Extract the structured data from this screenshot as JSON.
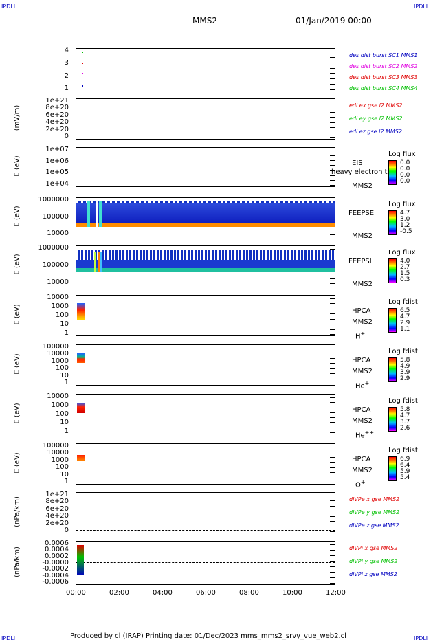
{
  "corners": {
    "tl": "IPDLI",
    "tr": "IPDLI",
    "bl": "IPDLI",
    "br": "IPDLI"
  },
  "header": {
    "mission": "MMS2",
    "date": "01/Jan/2019 00:00"
  },
  "panels": {
    "p1": {
      "yticks": [
        "4",
        "3",
        "2",
        "1"
      ],
      "legend": [
        "des dist burst SC1 MMS1",
        "des dist burst SC2 MMS2",
        "des dist burst SC3 MMS3",
        "des dist burst SC4 MMS4"
      ],
      "legend_colors": [
        "#0000c0",
        "#e000e0",
        "#e00000",
        "#00c000"
      ]
    },
    "p2": {
      "ylabel": "(mV/m)",
      "yticks": [
        "1e+21",
        "8e+20",
        "6e+20",
        "4e+20",
        "2e+20",
        "0"
      ],
      "legend": [
        "edi ex gse l2 MMS2",
        "edi ey gse l2 MMS2",
        "edi ez gse l2 MMS2"
      ],
      "legend_colors": [
        "#e00000",
        "#00c000",
        "#0000c0"
      ]
    },
    "p3": {
      "ylabel": "E (eV)",
      "yticks": [
        "1e+07",
        "1e+06",
        "1e+05",
        "1e+04"
      ],
      "inst": "EIS",
      "sc": "MMS2",
      "overlay": "heavy electron to",
      "cb_title": "Log flux",
      "cb_vals": [
        "0.0",
        "0.0",
        "0.0",
        "0.0"
      ]
    },
    "p4": {
      "ylabel": "E (eV)",
      "yticks": [
        "1000000",
        "100000",
        "10000"
      ],
      "inst": "FEEPSE",
      "sc": "MMS2",
      "cb_title": "Log flux",
      "cb_vals": [
        "4.7",
        "3.0",
        "1.2",
        "-0.5"
      ]
    },
    "p5": {
      "ylabel": "E (eV)",
      "yticks": [
        "1000000",
        "100000",
        "10000"
      ],
      "inst": "FEEPSI",
      "sc": "MMS2",
      "cb_title": "Log flux",
      "cb_vals": [
        "4.0",
        "2.7",
        "1.5",
        "0.3"
      ]
    },
    "p6": {
      "ylabel": "E (eV)",
      "yticks": [
        "10000",
        "1000",
        "100",
        "10",
        "1"
      ],
      "inst": "HPCA",
      "sc": "MMS2",
      "species": "H",
      "species_sup": "+",
      "cb_title": "Log fdist",
      "cb_vals": [
        "6.5",
        "4.7",
        "2.9",
        "1.1"
      ]
    },
    "p7": {
      "ylabel": "E (eV)",
      "yticks": [
        "100000",
        "10000",
        "1000",
        "100",
        "10",
        "1"
      ],
      "inst": "HPCA",
      "sc": "MMS2",
      "species": "He",
      "species_sup": "+",
      "cb_title": "Log fdist",
      "cb_vals": [
        "5.8",
        "4.9",
        "3.9",
        "2.9"
      ]
    },
    "p8": {
      "ylabel": "E (eV)",
      "yticks": [
        "10000",
        "1000",
        "100",
        "10",
        "1"
      ],
      "inst": "HPCA",
      "sc": "MMS2",
      "species": "He",
      "species_sup": "++",
      "cb_title": "Log fdist",
      "cb_vals": [
        "5.8",
        "4.7",
        "3.7",
        "2.6"
      ]
    },
    "p9": {
      "ylabel": "E (eV)",
      "yticks": [
        "100000",
        "10000",
        "1000",
        "100",
        "10",
        "1"
      ],
      "inst": "HPCA",
      "sc": "MMS2",
      "species": "O",
      "species_sup": "+",
      "cb_title": "Log fdist",
      "cb_vals": [
        "6.9",
        "6.4",
        "5.9",
        "5.4"
      ]
    },
    "p10": {
      "ylabel": "(nPa/km)",
      "yticks": [
        "1e+21",
        "8e+20",
        "6e+20",
        "4e+20",
        "2e+20",
        "0"
      ],
      "legend": [
        "dIVPe x gse MMS2",
        "dIVPe y gse MMS2",
        "dIVPe z gse MMS2"
      ],
      "legend_colors": [
        "#e00000",
        "#00c000",
        "#0000c0"
      ]
    },
    "p11": {
      "ylabel": "(nPa/km)",
      "yticks": [
        "0.0006",
        "0.0004",
        "0.0002",
        "-0.0000",
        "-0.0002",
        "-0.0004",
        "-0.0006"
      ],
      "legend": [
        "dIVPi x gse MMS2",
        "dIVPi y gse MMS2",
        "dIVPi z gse MMS2"
      ],
      "legend_colors": [
        "#e00000",
        "#00c000",
        "#0000c0"
      ]
    }
  },
  "xaxis": {
    "ticks": [
      "00:00",
      "02:00",
      "04:00",
      "06:00",
      "08:00",
      "10:00",
      "12:00"
    ]
  },
  "footer": {
    "text": "Produced by cl (IRAP)   Printing date: 01/Dec/2023   mms_mms2_srvy_vue_web2.cl"
  },
  "chart_data": {
    "type": "heatmap",
    "title": "MMS2",
    "x": {
      "start": "00:00",
      "end": "12:00",
      "ticks": [
        "00:00",
        "02:00",
        "04:00",
        "06:00",
        "08:00",
        "10:00",
        "12:00"
      ]
    },
    "panels": [
      {
        "name": "des dist burst",
        "series": [
          "SC1 MMS1",
          "SC2 MMS2",
          "SC3 MMS3",
          "SC4 MMS4"
        ],
        "ylim": [
          1,
          4
        ]
      },
      {
        "name": "edi e gse l2",
        "ylabel": "(mV/m)",
        "ylim": [
          0,
          1e+21
        ]
      },
      {
        "name": "EIS",
        "ylabel": "E (eV)",
        "ylim": [
          10000.0,
          10000000.0
        ],
        "log": true
      },
      {
        "name": "FEEPSE",
        "ylabel": "E (eV)",
        "ylim": [
          10000.0,
          1000000.0
        ],
        "log": true,
        "colorbar": [
          -0.5,
          4.7
        ]
      },
      {
        "name": "FEEPSI",
        "ylabel": "E (eV)",
        "ylim": [
          10000.0,
          1000000.0
        ],
        "log": true,
        "colorbar": [
          0.3,
          4.0
        ]
      },
      {
        "name": "HPCA H+",
        "ylabel": "E (eV)",
        "ylim": [
          1,
          10000.0
        ],
        "log": true,
        "colorbar": [
          1.1,
          6.5
        ]
      },
      {
        "name": "HPCA He+",
        "ylabel": "E (eV)",
        "ylim": [
          1,
          100000.0
        ],
        "log": true,
        "colorbar": [
          2.9,
          5.8
        ]
      },
      {
        "name": "HPCA He++",
        "ylabel": "E (eV)",
        "ylim": [
          1,
          10000.0
        ],
        "log": true,
        "colorbar": [
          2.6,
          5.8
        ]
      },
      {
        "name": "HPCA O+",
        "ylabel": "E (eV)",
        "ylim": [
          1,
          100000.0
        ],
        "log": true,
        "colorbar": [
          5.4,
          6.9
        ]
      },
      {
        "name": "dIVPe gse",
        "ylabel": "(nPa/km)",
        "ylim": [
          0,
          1e+21
        ]
      },
      {
        "name": "dIVPi gse",
        "ylabel": "(nPa/km)",
        "ylim": [
          -0.0006,
          0.0006
        ]
      }
    ]
  }
}
